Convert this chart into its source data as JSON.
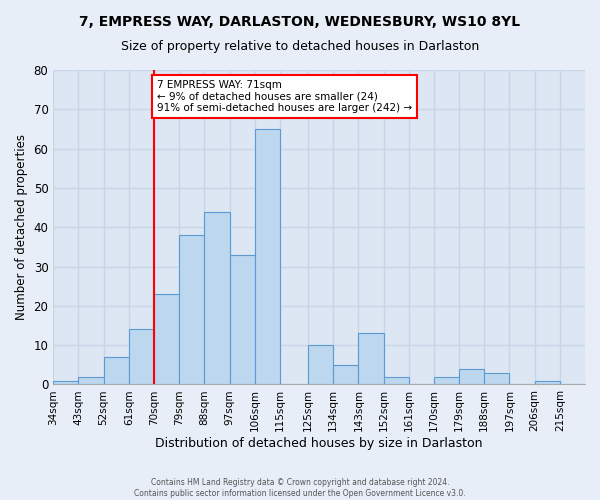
{
  "title": "7, EMPRESS WAY, DARLASTON, WEDNESBURY, WS10 8YL",
  "subtitle": "Size of property relative to detached houses in Darlaston",
  "xlabel": "Distribution of detached houses by size in Darlaston",
  "ylabel": "Number of detached properties",
  "bin_labels": [
    "34sqm",
    "43sqm",
    "52sqm",
    "61sqm",
    "70sqm",
    "79sqm",
    "88sqm",
    "97sqm",
    "106sqm",
    "115sqm",
    "125sqm",
    "134sqm",
    "143sqm",
    "152sqm",
    "161sqm",
    "170sqm",
    "179sqm",
    "188sqm",
    "197sqm",
    "206sqm",
    "215sqm"
  ],
  "bin_edges": [
    34,
    43,
    52,
    61,
    70,
    79,
    88,
    97,
    106,
    115,
    125,
    134,
    143,
    152,
    161,
    170,
    179,
    188,
    197,
    206,
    215,
    224
  ],
  "bar_heights": [
    1,
    2,
    7,
    14,
    23,
    38,
    44,
    33,
    65,
    0,
    10,
    5,
    13,
    2,
    0,
    2,
    4,
    3,
    0,
    1,
    0
  ],
  "bar_color": "#bdd7ee",
  "bar_edge_color": "#5b9bd5",
  "property_line_x": 70,
  "property_line_color": "red",
  "annotation_title": "7 EMPRESS WAY: 71sqm",
  "annotation_line1": "← 9% of detached houses are smaller (24)",
  "annotation_line2": "91% of semi-detached houses are larger (242) →",
  "ylim": [
    0,
    80
  ],
  "yticks": [
    0,
    10,
    20,
    30,
    40,
    50,
    60,
    70,
    80
  ],
  "background_color": "#e8eef8",
  "plot_bg_color": "#dde6f3",
  "grid_color": "#c8d4e8",
  "footer1": "Contains HM Land Registry data © Crown copyright and database right 2024.",
  "footer2": "Contains public sector information licensed under the Open Government Licence v3.0."
}
